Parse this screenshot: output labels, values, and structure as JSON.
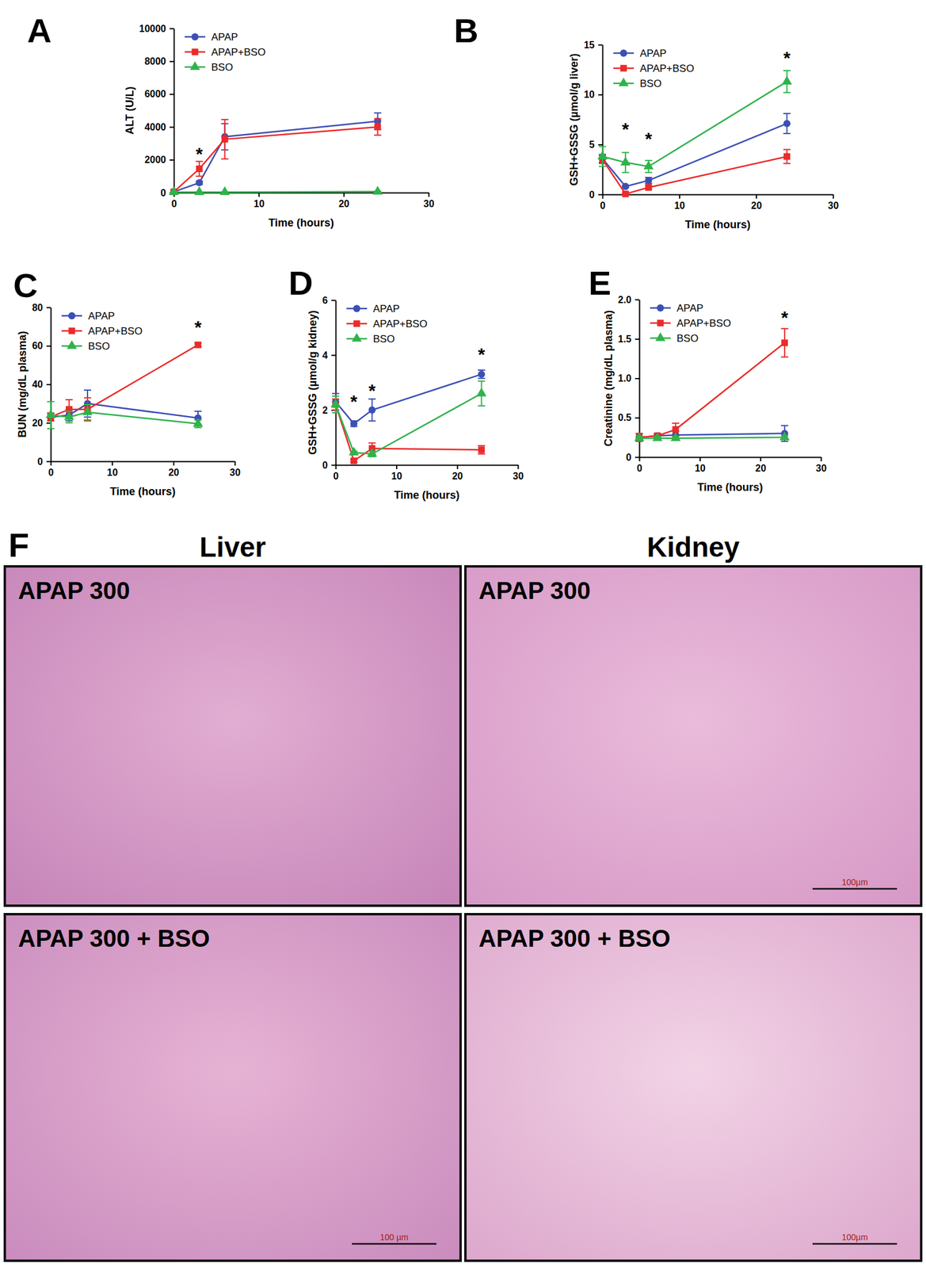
{
  "chart_data": [
    {
      "type": "line",
      "panel_label": "A",
      "x_label": "Time (hours)",
      "y_label": "ALT (U/L)",
      "x": [
        0,
        3,
        6,
        24
      ],
      "xlim": [
        0,
        30
      ],
      "xticks": [
        0,
        10,
        20,
        30
      ],
      "ylim": [
        0,
        10000
      ],
      "yticks": [
        0,
        2000,
        4000,
        6000,
        8000,
        10000
      ],
      "legend": "upper left",
      "series": [
        {
          "name": "APAP",
          "color": "#3c4fb4",
          "marker": "circle",
          "values": [
            50,
            600,
            3400,
            4350
          ],
          "errors": [
            30,
            100,
            800,
            500
          ]
        },
        {
          "name": "APAP+BSO",
          "color": "#ec2a2a",
          "marker": "square",
          "values": [
            50,
            1450,
            3250,
            4000
          ],
          "errors": [
            20,
            450,
            1200,
            500
          ]
        },
        {
          "name": "BSO",
          "color": "#2fb34a",
          "marker": "triangle",
          "values": [
            30,
            30,
            30,
            60
          ],
          "errors": [
            10,
            10,
            10,
            15
          ]
        }
      ],
      "annotations": [
        {
          "text": "*",
          "x": 3,
          "y": 2500
        }
      ]
    },
    {
      "type": "line",
      "panel_label": "B",
      "x_label": "Time (hours)",
      "y_label": "GSH+GSSG (µmol/g liver)",
      "x": [
        0,
        3,
        6,
        24
      ],
      "xlim": [
        0,
        30
      ],
      "xticks": [
        0,
        10,
        20,
        30
      ],
      "ylim": [
        0,
        15
      ],
      "yticks": [
        0,
        5,
        10,
        15
      ],
      "legend": "upper left",
      "series": [
        {
          "name": "APAP",
          "color": "#3c4fb4",
          "marker": "circle",
          "values": [
            3.6,
            0.8,
            1.4,
            7.1
          ],
          "errors": [
            0.4,
            0.1,
            0.3,
            1.0
          ]
        },
        {
          "name": "APAP+BSO",
          "color": "#ec2a2a",
          "marker": "square",
          "values": [
            3.5,
            0.05,
            0.7,
            3.8
          ],
          "errors": [
            0.4,
            0.05,
            0.15,
            0.7
          ]
        },
        {
          "name": "BSO",
          "color": "#2fb34a",
          "marker": "triangle",
          "values": [
            3.8,
            3.2,
            2.8,
            11.3
          ],
          "errors": [
            1.0,
            1.0,
            0.6,
            1.1
          ]
        }
      ],
      "annotations": [
        {
          "text": "*",
          "x": 3,
          "y": 6.8
        },
        {
          "text": "*",
          "x": 6,
          "y": 5.8
        },
        {
          "text": "*",
          "x": 24,
          "y": 13.9
        }
      ]
    },
    {
      "type": "line",
      "panel_label": "C",
      "x_label": "Time (hours)",
      "y_label": "BUN (mg/dL plasma)",
      "x": [
        0,
        3,
        6,
        24
      ],
      "xlim": [
        0,
        30
      ],
      "xticks": [
        0,
        10,
        20,
        30
      ],
      "ylim": [
        0,
        80
      ],
      "yticks": [
        0,
        20,
        40,
        60,
        80
      ],
      "legend": "upper left",
      "series": [
        {
          "name": "APAP",
          "color": "#3c4fb4",
          "marker": "circle",
          "values": [
            23,
            24,
            30,
            22.5
          ],
          "errors": [
            2,
            3,
            7,
            3.5
          ]
        },
        {
          "name": "APAP+BSO",
          "color": "#ec2a2a",
          "marker": "square",
          "values": [
            23,
            27,
            27,
            60.5
          ],
          "errors": [
            2,
            5,
            6,
            1
          ]
        },
        {
          "name": "BSO",
          "color": "#2fb34a",
          "marker": "triangle",
          "values": [
            24,
            23,
            25.5,
            19.5
          ],
          "errors": [
            7,
            3,
            4,
            2
          ]
        }
      ],
      "annotations": [
        {
          "text": "*",
          "x": 24,
          "y": 71
        }
      ]
    },
    {
      "type": "line",
      "panel_label": "D",
      "x_label": "Time (hours)",
      "y_label": "GSH+GSSG (µmol/g kidney)",
      "x": [
        0,
        3,
        6,
        24
      ],
      "xlim": [
        0,
        30
      ],
      "xticks": [
        0,
        10,
        20,
        30
      ],
      "ylim": [
        0,
        6
      ],
      "yticks": [
        0,
        2,
        4,
        6
      ],
      "legend": "upper left",
      "series": [
        {
          "name": "APAP",
          "color": "#3c4fb4",
          "marker": "circle",
          "values": [
            2.3,
            1.5,
            2.0,
            3.3
          ],
          "errors": [
            0.3,
            0.1,
            0.4,
            0.15
          ]
        },
        {
          "name": "APAP+BSO",
          "color": "#ec2a2a",
          "marker": "square",
          "values": [
            2.2,
            0.15,
            0.6,
            0.55
          ],
          "errors": [
            0.2,
            0.05,
            0.2,
            0.15
          ]
        },
        {
          "name": "BSO",
          "color": "#2fb34a",
          "marker": "triangle",
          "values": [
            2.2,
            0.45,
            0.4,
            2.6
          ],
          "errors": [
            0.3,
            0.05,
            0.1,
            0.45
          ]
        }
      ],
      "annotations": [
        {
          "text": "*",
          "x": 3,
          "y": 2.4
        },
        {
          "text": "*",
          "x": 6,
          "y": 2.8
        },
        {
          "text": "*",
          "x": 24,
          "y": 4.1
        }
      ]
    },
    {
      "type": "line",
      "panel_label": "E",
      "x_label": "Time (hours)",
      "y_label": "Creatinine (mg/dL plasma)",
      "x": [
        0,
        3,
        6,
        24
      ],
      "xlim": [
        0,
        30
      ],
      "xticks": [
        0,
        10,
        20,
        30
      ],
      "ylim": [
        0,
        2
      ],
      "yticks": [
        0,
        0.5,
        {
          "value": 1,
          "label": "1.0"
        },
        1.5,
        {
          "value": 2,
          "label": "2.0"
        }
      ],
      "legend": "upper left",
      "series": [
        {
          "name": "APAP",
          "color": "#3c4fb4",
          "marker": "circle",
          "values": [
            0.25,
            0.27,
            0.28,
            0.3
          ],
          "errors": [
            0.05,
            0.02,
            0.05,
            0.1
          ]
        },
        {
          "name": "APAP+BSO",
          "color": "#ec2a2a",
          "marker": "square",
          "values": [
            0.25,
            0.27,
            0.35,
            1.45
          ],
          "errors": [
            0.05,
            0.03,
            0.08,
            0.18
          ]
        },
        {
          "name": "BSO",
          "color": "#2fb34a",
          "marker": "triangle",
          "values": [
            0.24,
            0.24,
            0.24,
            0.25
          ],
          "errors": [
            0.02,
            0.02,
            0.02,
            0.02
          ]
        }
      ],
      "annotations": [
        {
          "text": "*",
          "x": 24,
          "y": 1.8
        }
      ]
    }
  ],
  "panel_f": {
    "panel_label": "F",
    "columns": [
      "Liver",
      "Kidney"
    ],
    "images": [
      [
        {
          "label": "APAP 300"
        },
        {
          "label": "APAP 300",
          "scale_bar": "100µm"
        }
      ],
      [
        {
          "label": "APAP 300 + BSO",
          "scale_bar": "100 µm"
        },
        {
          "label": "APAP 300 + BSO",
          "scale_bar": "100µm"
        }
      ]
    ]
  }
}
